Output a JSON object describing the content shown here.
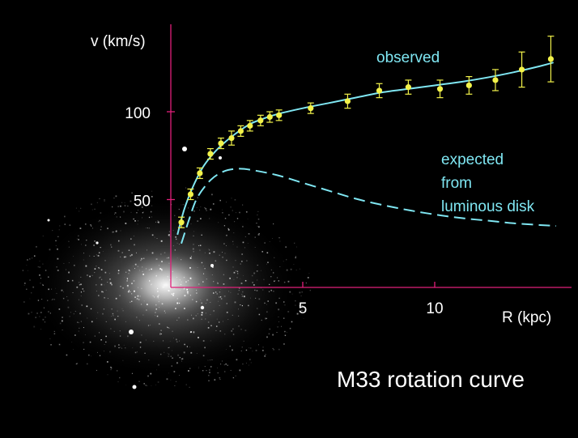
{
  "chart_data": {
    "type": "scatter",
    "title": "M33 rotation curve",
    "xlabel": "R (kpc)",
    "ylabel": "v (km/s)",
    "x_ticks": [
      5,
      10
    ],
    "y_ticks": [
      50,
      100
    ],
    "xlim": [
      0,
      14.6
    ],
    "ylim": [
      0,
      150
    ],
    "colors": {
      "axes": "#e0207a",
      "observed": "#f2f24a",
      "fit": "#7fe6f2",
      "expected": "#7fe6f2"
    },
    "series": [
      {
        "name": "observed",
        "style": "points with error bars and fitted line",
        "points": [
          {
            "x": 0.4,
            "y": 37,
            "err": 3
          },
          {
            "x": 0.75,
            "y": 53,
            "err": 3
          },
          {
            "x": 1.1,
            "y": 65,
            "err": 3
          },
          {
            "x": 1.5,
            "y": 76,
            "err": 3
          },
          {
            "x": 1.9,
            "y": 82,
            "err": 3
          },
          {
            "x": 2.3,
            "y": 85,
            "err": 4
          },
          {
            "x": 2.65,
            "y": 89,
            "err": 3
          },
          {
            "x": 3.0,
            "y": 92,
            "err": 3
          },
          {
            "x": 3.4,
            "y": 95,
            "err": 3
          },
          {
            "x": 3.75,
            "y": 97,
            "err": 3
          },
          {
            "x": 4.1,
            "y": 98,
            "err": 3
          },
          {
            "x": 5.3,
            "y": 102,
            "err": 3
          },
          {
            "x": 6.7,
            "y": 106,
            "err": 4
          },
          {
            "x": 7.9,
            "y": 112,
            "err": 4
          },
          {
            "x": 9.0,
            "y": 114,
            "err": 4
          },
          {
            "x": 10.2,
            "y": 113,
            "err": 5
          },
          {
            "x": 11.3,
            "y": 115,
            "err": 5
          },
          {
            "x": 12.3,
            "y": 118,
            "err": 6
          },
          {
            "x": 13.3,
            "y": 124,
            "err": 10
          },
          {
            "x": 14.4,
            "y": 130,
            "err": 13
          }
        ],
        "fit": [
          [
            0.25,
            30
          ],
          [
            0.5,
            44
          ],
          [
            0.8,
            56
          ],
          [
            1.2,
            68
          ],
          [
            1.6,
            76
          ],
          [
            2.0,
            82
          ],
          [
            2.5,
            88
          ],
          [
            3.0,
            93
          ],
          [
            3.5,
            96
          ],
          [
            4.0,
            98.5
          ],
          [
            5.0,
            102
          ],
          [
            6.0,
            105
          ],
          [
            7.0,
            108
          ],
          [
            8.0,
            111
          ],
          [
            9.0,
            113
          ],
          [
            10.0,
            115
          ],
          [
            11.0,
            117
          ],
          [
            12.0,
            119.5
          ],
          [
            13.0,
            122.5
          ],
          [
            14.0,
            126
          ],
          [
            14.5,
            128
          ]
        ]
      },
      {
        "name": "expected from luminous disk",
        "style": "dashed",
        "fit": [
          [
            0.4,
            25
          ],
          [
            0.7,
            39
          ],
          [
            1.0,
            51
          ],
          [
            1.5,
            61
          ],
          [
            2.0,
            66
          ],
          [
            2.5,
            67.5
          ],
          [
            3.0,
            67
          ],
          [
            4.0,
            64
          ],
          [
            5.0,
            59.5
          ],
          [
            6.0,
            55
          ],
          [
            7.0,
            50.5
          ],
          [
            8.0,
            47
          ],
          [
            9.0,
            44
          ],
          [
            10.0,
            41.5
          ],
          [
            11.0,
            39.5
          ],
          [
            12.0,
            38
          ],
          [
            13.0,
            36.5
          ],
          [
            14.0,
            35.5
          ],
          [
            14.6,
            35
          ]
        ]
      }
    ],
    "annotations": {
      "observed": "observed",
      "expected_lines": [
        "expected",
        "from",
        "luminous disk"
      ]
    }
  }
}
